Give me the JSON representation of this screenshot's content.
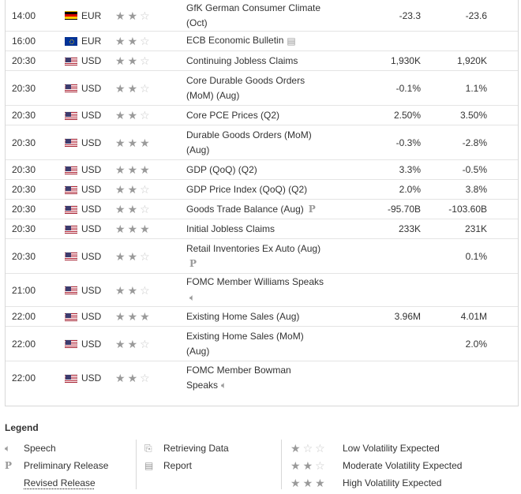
{
  "events": [
    {
      "time": "14:00",
      "country": "de",
      "currency": "EUR",
      "stars": 2,
      "event_lines": [
        "GfK German Consumer Climate",
        "(Oct)"
      ],
      "icon": "",
      "actual": "-23.3",
      "forecast": "-23.6",
      "height": 40
    },
    {
      "time": "16:00",
      "country": "eu",
      "currency": "EUR",
      "stars": 2,
      "event_lines": [
        "ECB Economic Bulletin"
      ],
      "icon": "report",
      "actual": "",
      "forecast": "",
      "height": 25
    },
    {
      "time": "20:30",
      "country": "us",
      "currency": "USD",
      "stars": 2,
      "event_lines": [
        "Continuing Jobless Claims"
      ],
      "icon": "",
      "actual": "1,930K",
      "forecast": "1,920K",
      "height": 25
    },
    {
      "time": "20:30",
      "country": "us",
      "currency": "USD",
      "stars": 2,
      "event_lines": [
        "Core Durable Goods Orders",
        "(MoM) (Aug)"
      ],
      "icon": "",
      "actual": "-0.1%",
      "forecast": "1.1%",
      "height": 44
    },
    {
      "time": "20:30",
      "country": "us",
      "currency": "USD",
      "stars": 2,
      "event_lines": [
        "Core PCE Prices (Q2)"
      ],
      "icon": "",
      "actual": "2.50%",
      "forecast": "3.50%",
      "height": 25
    },
    {
      "time": "20:30",
      "country": "us",
      "currency": "USD",
      "stars": 3,
      "event_lines": [
        "Durable Goods Orders (MoM)",
        "(Aug)"
      ],
      "icon": "",
      "actual": "-0.3%",
      "forecast": "-2.8%",
      "height": 44
    },
    {
      "time": "20:30",
      "country": "us",
      "currency": "USD",
      "stars": 3,
      "event_lines": [
        "GDP (QoQ) (Q2)"
      ],
      "icon": "",
      "actual": "3.3%",
      "forecast": "-0.5%",
      "height": 25
    },
    {
      "time": "20:30",
      "country": "us",
      "currency": "USD",
      "stars": 2,
      "event_lines": [
        "GDP Price Index (QoQ) (Q2)"
      ],
      "icon": "",
      "actual": "2.0%",
      "forecast": "3.8%",
      "height": 25
    },
    {
      "time": "20:30",
      "country": "us",
      "currency": "USD",
      "stars": 2,
      "event_lines": [
        "Goods Trade Balance (Aug)"
      ],
      "icon": "preliminary",
      "actual": "-95.70B",
      "forecast": "-103.60B",
      "height": 25
    },
    {
      "time": "20:30",
      "country": "us",
      "currency": "USD",
      "stars": 3,
      "event_lines": [
        "Initial Jobless Claims"
      ],
      "icon": "",
      "actual": "233K",
      "forecast": "231K",
      "height": 25
    },
    {
      "time": "20:30",
      "country": "us",
      "currency": "USD",
      "stars": 2,
      "event_lines": [
        "Retail Inventories Ex Auto (Aug)",
        ""
      ],
      "icon": "preliminary-below",
      "actual": "",
      "forecast": "0.1%",
      "height": 44
    },
    {
      "time": "21:00",
      "country": "us",
      "currency": "USD",
      "stars": 2,
      "event_lines": [
        "FOMC Member Williams Speaks",
        ""
      ],
      "icon": "speech-below",
      "actual": "",
      "forecast": "",
      "height": 42
    },
    {
      "time": "22:00",
      "country": "us",
      "currency": "USD",
      "stars": 3,
      "event_lines": [
        "Existing Home Sales (Aug)"
      ],
      "icon": "",
      "actual": "3.96M",
      "forecast": "4.01M",
      "height": 25
    },
    {
      "time": "22:00",
      "country": "us",
      "currency": "USD",
      "stars": 2,
      "event_lines": [
        "Existing Home Sales (MoM)",
        "(Aug)"
      ],
      "icon": "",
      "actual": "",
      "forecast": "2.0%",
      "height": 44
    },
    {
      "time": "22:00",
      "country": "us",
      "currency": "USD",
      "stars": 2,
      "event_lines": [
        "FOMC Member Bowman",
        "Speaks"
      ],
      "icon": "speech-inline",
      "actual": "",
      "forecast": "",
      "height": 42
    }
  ],
  "legend": {
    "title": "Legend",
    "speech": "Speech",
    "preliminary": "Preliminary Release",
    "revised": "Revised Release",
    "retrieving": "Retrieving Data",
    "report": "Report",
    "low": "Low Volatility Expected",
    "moderate": "Moderate Volatility Expected",
    "high": "High Volatility Expected"
  },
  "colors": {
    "star_on": "#9a9a9a",
    "star_off": "#c8c8c8",
    "border": "#d8d8d8"
  }
}
